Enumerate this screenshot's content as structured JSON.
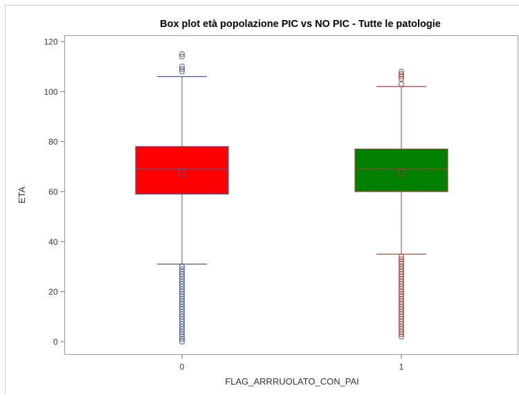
{
  "chart_data": {
    "type": "box",
    "title": "Box plot età popolazione PIC vs NO PIC - Tutte le patologie",
    "xlabel": "FLAG_ARRRUOLATO_CON_PAI",
    "ylabel": "ETA",
    "ylim": [
      -5,
      123
    ],
    "yticks": [
      0,
      20,
      40,
      60,
      80,
      100,
      120
    ],
    "categories": [
      "0",
      "1"
    ],
    "boxes": [
      {
        "category": "0",
        "fill": "#ff0000",
        "line": "#4a5a9c",
        "whisker_low": 31,
        "q1": 59,
        "median": 69,
        "mean": 67.5,
        "q3": 78,
        "whisker_high": 106,
        "outliers_high": [
          108,
          109,
          110,
          114,
          115
        ],
        "outliers_low": [
          0,
          1,
          2,
          3,
          4,
          5,
          6,
          7,
          8,
          9,
          10,
          11,
          12,
          13,
          14,
          15,
          16,
          17,
          18,
          19,
          20,
          21,
          22,
          23,
          24,
          25,
          26,
          27,
          28,
          29,
          30
        ]
      },
      {
        "category": "1",
        "fill": "#008000",
        "line": "#a0403a",
        "whisker_low": 35,
        "q1": 60,
        "median": 69,
        "mean": 67.5,
        "q3": 77,
        "whisker_high": 102,
        "outliers_high": [
          103,
          105,
          106,
          107,
          108
        ],
        "outliers_low": [
          2,
          3,
          4,
          5,
          6,
          7,
          8,
          9,
          10,
          11,
          12,
          13,
          14,
          15,
          16,
          17,
          18,
          19,
          20,
          21,
          22,
          23,
          24,
          25,
          26,
          27,
          28,
          29,
          30,
          31,
          32,
          33,
          34
        ]
      }
    ]
  }
}
